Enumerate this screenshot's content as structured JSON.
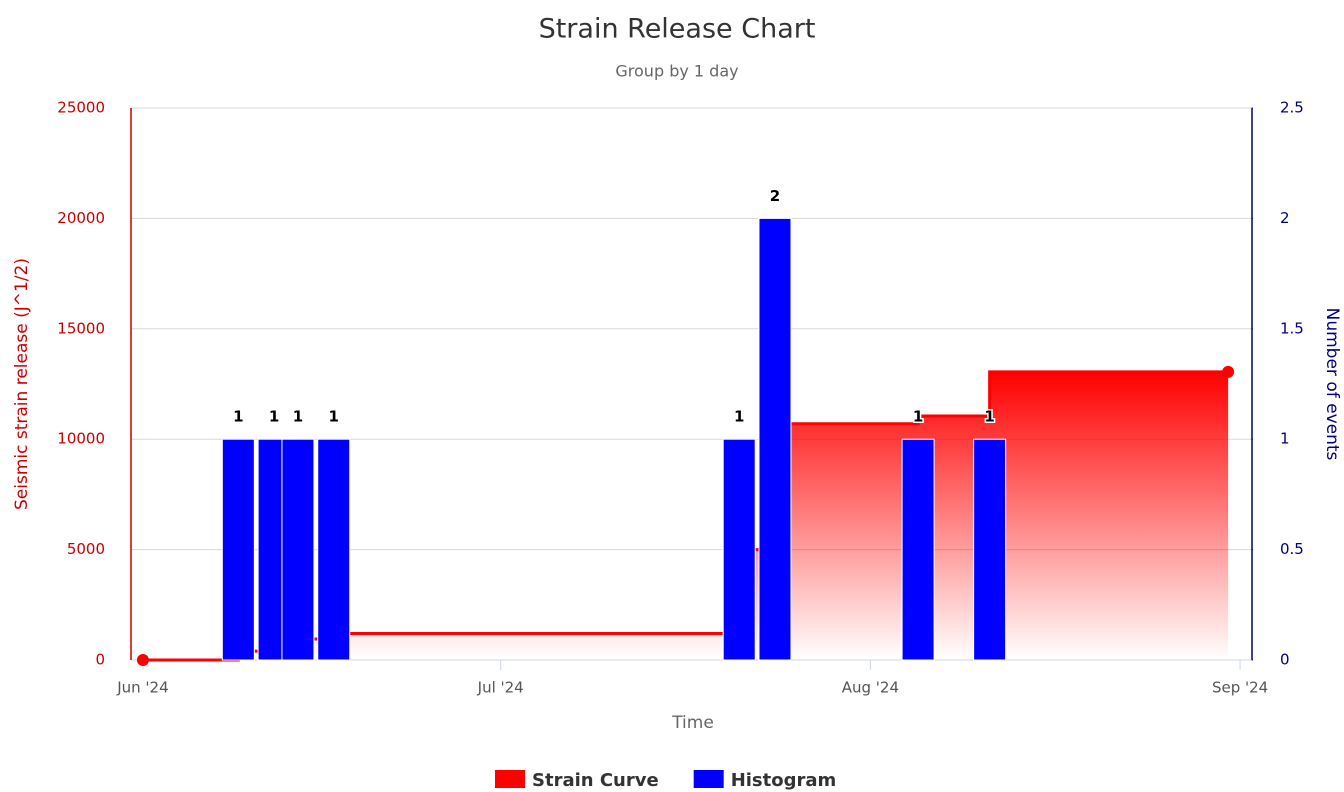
{
  "chart_data": {
    "type": "combo",
    "title": "Strain Release Chart",
    "subtitle": "Group by 1 day",
    "x_label": "Time",
    "y_label": "Seismic strain release (J^1/2)",
    "y2_label": "Number of events",
    "xlim": [
      "2024-05-31",
      "2024-09-02"
    ],
    "xticks": [
      {
        "value": "2024-06-01",
        "label": "Jun '24"
      },
      {
        "value": "2024-07-01",
        "label": "Jul '24"
      },
      {
        "value": "2024-08-01",
        "label": "Aug '24"
      },
      {
        "value": "2024-09-01",
        "label": "Sep '24"
      }
    ],
    "ylim": [
      0,
      25000
    ],
    "yticks": [
      0,
      5000,
      10000,
      15000,
      20000,
      25000
    ],
    "y2lim": [
      0,
      2.5
    ],
    "y2ticks": [
      0,
      0.5,
      1,
      1.5,
      2,
      2.5
    ],
    "grid": true,
    "legend": "bottom",
    "series": [
      {
        "name": "Strain Curve",
        "color": "#ff0000",
        "kind": "step-area",
        "x": [
          "2024-06-01",
          "2024-06-09",
          "2024-06-12",
          "2024-06-14",
          "2024-06-17",
          "2024-07-21",
          "2024-07-24",
          "2024-08-05",
          "2024-08-11",
          "2024-08-31"
        ],
        "values": [
          0,
          400,
          700,
          950,
          1200,
          5000,
          10700,
          11050,
          13050,
          13050
        ]
      },
      {
        "name": "Histogram",
        "color": "#0000ff",
        "kind": "column",
        "axis": "y2",
        "x": [
          "2024-06-09",
          "2024-06-12",
          "2024-06-14",
          "2024-06-17",
          "2024-07-21",
          "2024-07-24",
          "2024-08-05",
          "2024-08-11"
        ],
        "values": [
          1,
          1,
          1,
          1,
          1,
          2,
          1,
          1
        ]
      }
    ]
  }
}
